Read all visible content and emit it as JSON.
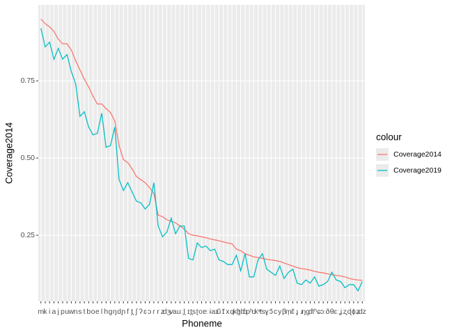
{
  "chart_data": {
    "type": "line",
    "x_label": "Phoneme",
    "y_label": "Coverage2014",
    "legend_title": "colour",
    "legend": "right",
    "grid": true,
    "categories": [
      "m",
      "k",
      "i",
      "a",
      "j",
      "p",
      "u",
      "w",
      "n",
      "s",
      "t",
      "b",
      "o",
      "e",
      "l",
      "h",
      "g",
      "ŋ",
      "d",
      "ɲ",
      "f",
      "t̪",
      "ʃ",
      "ʔ",
      "ɛ",
      "ɔ",
      "ɾ",
      "r",
      "z",
      "dʒ",
      "v",
      "aː",
      "uː",
      "l̪",
      "ɪ",
      "t̪s",
      "ʈ",
      "oː",
      "eː",
      "ɨ",
      "aɪ",
      "ũ",
      "ɪ̃",
      "x",
      "q",
      "kʰ",
      "ɡb",
      "ɓ",
      "pʰ",
      "ʊ",
      "kʷ",
      "ts",
      "ɣ",
      "ɔ̃",
      "c",
      "y",
      "β",
      "m̩",
      "ɛ̃",
      "ɟ",
      "ɹ",
      "ŋg",
      "ɗ",
      "tʰ",
      "ɕ",
      "ɔː",
      "ð",
      "θ",
      "ɛː",
      "ʝ",
      "ʐ",
      "ɖ",
      "ɸ",
      "ʑ",
      "dz"
    ],
    "series": [
      {
        "name": "Coverage2014",
        "color": "#f8766d",
        "values": [
          0.95,
          0.935,
          0.925,
          0.91,
          0.885,
          0.87,
          0.87,
          0.85,
          0.815,
          0.785,
          0.755,
          0.73,
          0.7,
          0.675,
          0.675,
          0.66,
          0.648,
          0.62,
          0.54,
          0.495,
          0.485,
          0.465,
          0.44,
          0.43,
          0.42,
          0.405,
          0.385,
          0.315,
          0.31,
          0.3,
          0.295,
          0.29,
          0.28,
          0.27,
          0.255,
          0.25,
          0.248,
          0.245,
          0.242,
          0.238,
          0.235,
          0.232,
          0.228,
          0.225,
          0.222,
          0.205,
          0.2,
          0.19,
          0.185,
          0.18,
          0.178,
          0.175,
          0.172,
          0.17,
          0.168,
          0.165,
          0.16,
          0.155,
          0.15,
          0.145,
          0.142,
          0.14,
          0.137,
          0.133,
          0.13,
          0.128,
          0.125,
          0.122,
          0.12,
          0.118,
          0.115,
          0.11,
          0.107,
          0.105,
          0.104
        ]
      },
      {
        "name": "Coverage2019",
        "color": "#00bfc4",
        "values": [
          0.92,
          0.86,
          0.875,
          0.82,
          0.855,
          0.82,
          0.835,
          0.78,
          0.74,
          0.635,
          0.65,
          0.6,
          0.575,
          0.58,
          0.645,
          0.535,
          0.54,
          0.6,
          0.43,
          0.395,
          0.42,
          0.39,
          0.36,
          0.355,
          0.335,
          0.35,
          0.42,
          0.28,
          0.245,
          0.26,
          0.305,
          0.255,
          0.28,
          0.28,
          0.175,
          0.17,
          0.225,
          0.21,
          0.215,
          0.2,
          0.205,
          0.17,
          0.165,
          0.155,
          0.155,
          0.185,
          0.135,
          0.19,
          0.115,
          0.115,
          0.17,
          0.19,
          0.14,
          0.13,
          0.12,
          0.15,
          0.11,
          0.13,
          0.14,
          0.095,
          0.09,
          0.105,
          0.095,
          0.115,
          0.085,
          0.09,
          0.1,
          0.13,
          0.105,
          0.1,
          0.08,
          0.09,
          0.09,
          0.07,
          0.1
        ]
      }
    ],
    "ylim": [
      0.036,
      0.996
    ],
    "yticks": [
      0.25,
      {
        "value": 0.5,
        "label": "0.50"
      },
      0.75
    ]
  }
}
